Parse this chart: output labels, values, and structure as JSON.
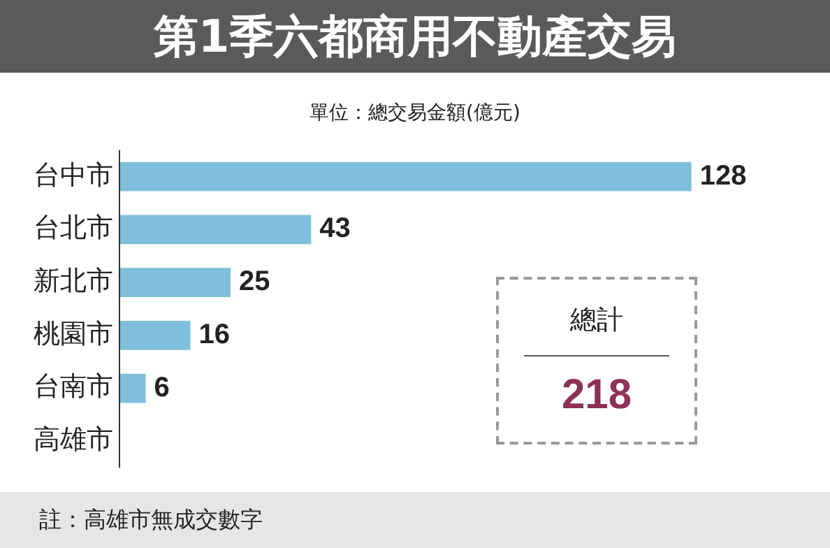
{
  "chart_data": {
    "type": "bar",
    "orientation": "horizontal",
    "title": "第1季六都商用不動產交易",
    "subtitle": "單位：總交易金額(億元)",
    "categories": [
      "台中市",
      "台北市",
      "新北市",
      "桃園市",
      "台南市",
      "高雄市"
    ],
    "values": [
      128,
      43,
      25,
      16,
      6,
      null
    ],
    "color": "#7ec0dc",
    "data_labels": true,
    "tick_labels": "y",
    "grid": false,
    "legend": false,
    "annotations": [
      "總計",
      "218",
      "註：高雄市無成交數字"
    ]
  }
}
